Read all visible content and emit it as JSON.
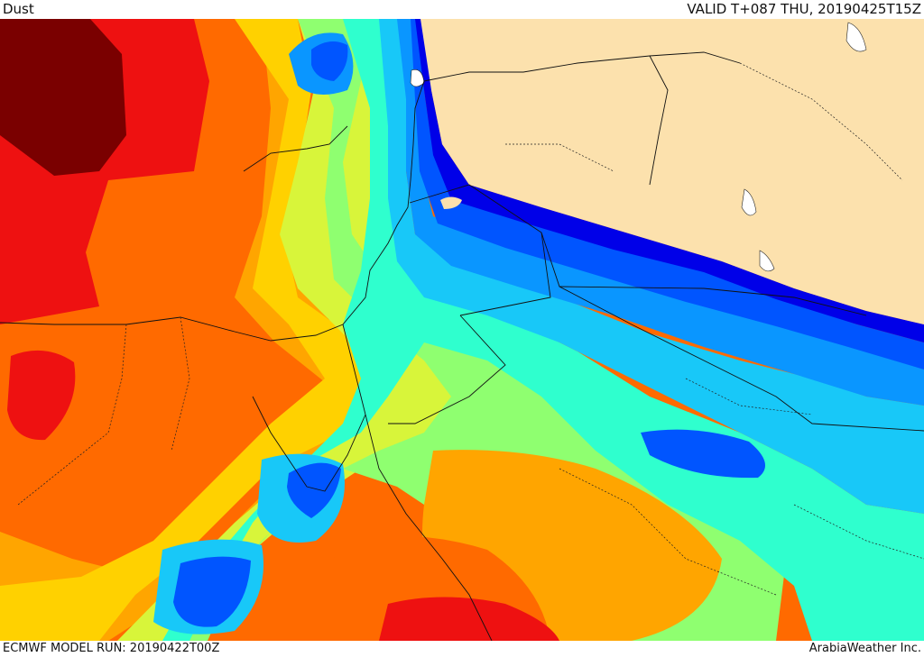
{
  "header": {
    "field_name": "Dust",
    "valid_time": "VALID T+087 THU, 20190425T15Z"
  },
  "footer": {
    "model_run": "ECMWF MODEL RUN: 20190422T00Z",
    "credit": "ArabiaWeather Inc."
  },
  "map": {
    "land_no_data_color": "#fce1ad",
    "palette": {
      "darkest_red": "#7a0000",
      "red": "#ee1111",
      "dark_orange": "#ff6a00",
      "orange": "#ffa500",
      "yellow": "#ffd100",
      "yellow_green": "#d8f53a",
      "light_green": "#8fff70",
      "aqua": "#2fffce",
      "cyan": "#18c8f8",
      "light_blue": "#0a96ff",
      "blue": "#0055ff",
      "deep_blue": "#0000e8"
    }
  }
}
